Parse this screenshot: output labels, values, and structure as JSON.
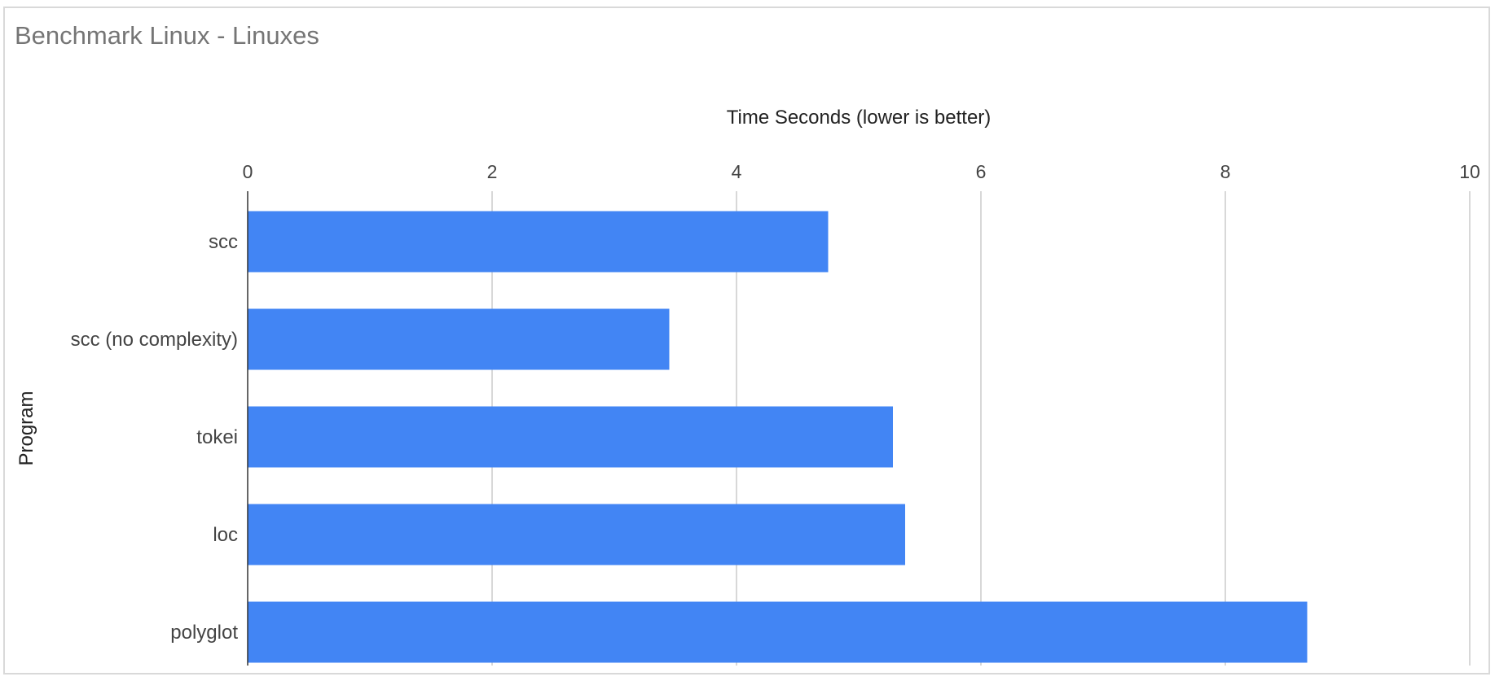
{
  "chart_data": {
    "type": "bar",
    "orientation": "horizontal",
    "title": "Benchmark Linux - Linuxes",
    "xlabel": "Time Seconds (lower is better)",
    "ylabel": "Program",
    "xlim": [
      0,
      10
    ],
    "x_ticks": [
      "0",
      "2",
      "4",
      "6",
      "8",
      "10"
    ],
    "categories": [
      "scc",
      "scc (no complexity)",
      "tokei",
      "loc",
      "polyglot"
    ],
    "values": [
      4.75,
      3.45,
      5.28,
      5.38,
      8.67
    ],
    "bar_color": "#4285f4",
    "grid": true,
    "legend": "none"
  }
}
